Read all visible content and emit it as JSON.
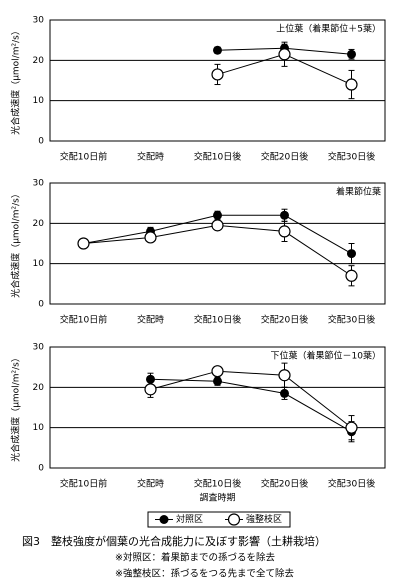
{
  "chart_data": [
    {
      "type": "line",
      "title": "上位葉（着果節位＋5葉）",
      "y_label": "光合成速度（μmol/m²/s）",
      "categories": [
        "交配10日前",
        "交配時",
        "交配10日後",
        "交配20日後",
        "交配30日後"
      ],
      "ylim": [
        0,
        30
      ],
      "yticks": [
        0,
        10,
        20,
        30
      ],
      "grid": true,
      "series": [
        {
          "color": "#000000",
          "marker": "filled",
          "values": [
            null,
            null,
            22.5,
            23,
            21.5
          ],
          "errors": [
            null,
            null,
            0.8,
            1,
            1.2
          ]
        },
        {
          "color": "#000000",
          "marker": "open",
          "values": [
            null,
            null,
            16.5,
            21.5,
            14
          ],
          "errors": [
            null,
            null,
            2.5,
            3,
            3.5
          ]
        }
      ]
    },
    {
      "type": "line",
      "title": "着果節位葉",
      "y_label": "光合成速度（μmol/m²/s）",
      "categories": [
        "交配10日前",
        "交配時",
        "交配10日後",
        "交配20日後",
        "交配30日後"
      ],
      "ylim": [
        0,
        30
      ],
      "yticks": [
        0,
        10,
        20,
        30
      ],
      "grid": true,
      "series": [
        {
          "color": "#000000",
          "marker": "filled",
          "values": [
            15,
            18,
            22,
            22,
            12.5
          ],
          "errors": [
            0.5,
            1,
            1,
            1.5,
            2.5
          ]
        },
        {
          "color": "#000000",
          "marker": "open",
          "values": [
            15,
            16.5,
            19.5,
            18,
            7
          ],
          "errors": [
            0.5,
            1,
            1,
            2.5,
            2.5
          ]
        }
      ]
    },
    {
      "type": "line",
      "title": "下位葉（着果節位－10葉）",
      "y_label": "光合成速度（μmol/m²/s）",
      "x_label": "調査時期",
      "categories": [
        "交配10日前",
        "交配時",
        "交配10日後",
        "交配20日後",
        "交配30日後"
      ],
      "ylim": [
        0,
        30
      ],
      "yticks": [
        0,
        10,
        20,
        30
      ],
      "grid": true,
      "series": [
        {
          "name": "対照区",
          "color": "#000000",
          "marker": "filled",
          "values": [
            null,
            22,
            21.5,
            18.5,
            9
          ],
          "errors": [
            null,
            1.5,
            1,
            1.5,
            2.5
          ]
        },
        {
          "name": "強整枝区",
          "color": "#000000",
          "marker": "open",
          "values": [
            null,
            19.5,
            24,
            23,
            10
          ],
          "errors": [
            null,
            2,
            1,
            3,
            3
          ]
        }
      ]
    }
  ],
  "caption": "図3　整枝強度が個葉の光合成能力に及ぼす影響（土耕栽培）",
  "notes": [
    "※対照区：着果節までの孫づるを除去",
    "※強整枝区：孫づるをつる先まで全て除去"
  ]
}
